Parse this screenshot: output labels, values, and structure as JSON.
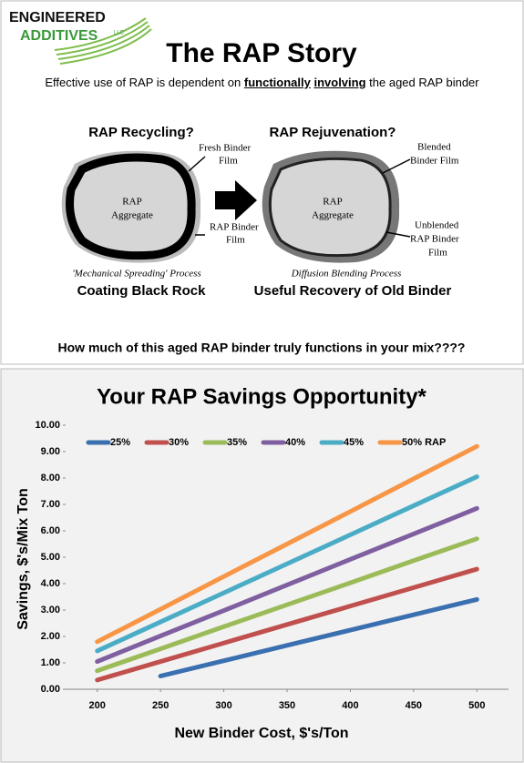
{
  "header": {
    "logo": [
      "ENGINEERED",
      "ADDITIVES",
      "LLC"
    ],
    "title": "The RAP Story",
    "subtitle": [
      "Effective use of RAP is dependent on",
      "functionally",
      "involving",
      "the aged RAP binder"
    ]
  },
  "diagram": {
    "left": {
      "heading": "RAP Recycling?",
      "aggregate": [
        "RAP",
        "Aggregate"
      ],
      "outer_label": [
        "Fresh Binder",
        "Film"
      ],
      "inner_label": [
        "RAP Binder",
        "Film"
      ],
      "process": "'Mechanical Spreading' Process",
      "caption": "Coating Black Rock"
    },
    "right": {
      "heading": "RAP Rejuvenation?",
      "aggregate": [
        "RAP",
        "Aggregate"
      ],
      "outer_label": [
        "Blended",
        "Binder Film"
      ],
      "inner_label": [
        "Unblended",
        "RAP Binder",
        "Film"
      ],
      "process": "Diffusion Blending Process",
      "caption": "Useful Recovery of Old Binder"
    }
  },
  "question": "How much of this aged RAP binder truly functions in your mix????",
  "chart_data": {
    "type": "line",
    "title": "Your RAP Savings Opportunity*",
    "x_label": "New Binder Cost, $'s/Ton",
    "y_label": "Savings, $'s/Mix Ton",
    "x": [
      200,
      250,
      300,
      350,
      400,
      450,
      500
    ],
    "xlim": [
      175,
      525
    ],
    "xticks": [
      200,
      250,
      300,
      350,
      400,
      450,
      500
    ],
    "ylim": [
      0,
      10
    ],
    "yticks": [
      {
        "value": 0,
        "label": "0.00"
      },
      {
        "value": 1,
        "label": "1.00"
      },
      {
        "value": 2,
        "label": "2.00"
      },
      {
        "value": 3,
        "label": "3.00"
      },
      {
        "value": 4,
        "label": "4.00"
      },
      {
        "value": 5,
        "label": "5.00"
      },
      {
        "value": 6,
        "label": "6.00"
      },
      {
        "value": 7,
        "label": "7.00"
      },
      {
        "value": 8,
        "label": "8.00"
      },
      {
        "value": 9,
        "label": "9.00"
      },
      {
        "value": 10,
        "label": "10.00"
      }
    ],
    "legend": "top",
    "series": [
      {
        "name": "25%",
        "color": "#3a6fb0",
        "values": [
          null,
          0.5,
          1.08,
          1.66,
          2.24,
          2.82,
          3.4
        ]
      },
      {
        "name": "30%",
        "color": "#c0504d",
        "values": [
          0.35,
          1.05,
          1.75,
          2.45,
          3.15,
          3.85,
          4.55
        ]
      },
      {
        "name": "35%",
        "color": "#9bbb59",
        "values": [
          0.7,
          1.53,
          2.37,
          3.2,
          4.03,
          4.87,
          5.7
        ]
      },
      {
        "name": "40%",
        "color": "#7f5fa0",
        "values": [
          1.05,
          2.02,
          2.98,
          3.95,
          4.92,
          5.88,
          6.85
        ]
      },
      {
        "name": "45%",
        "color": "#4bacc6",
        "values": [
          1.45,
          2.55,
          3.65,
          4.75,
          5.85,
          6.95,
          8.05
        ]
      },
      {
        "name": "50% RAP",
        "color": "#f79646",
        "values": [
          1.8,
          3.03,
          4.27,
          5.5,
          6.73,
          7.97,
          9.2
        ]
      }
    ]
  }
}
